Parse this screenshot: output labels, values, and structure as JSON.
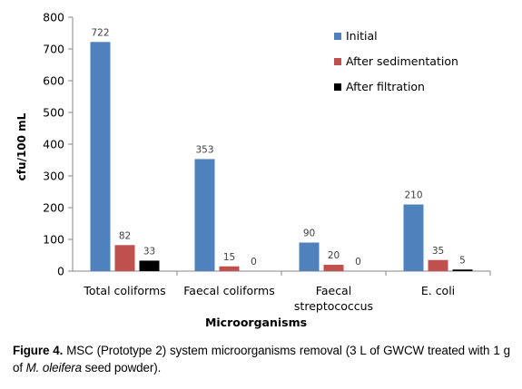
{
  "chart_data": {
    "type": "bar",
    "xlabel": "Microorganisms",
    "ylabel": "cfu/100 mL",
    "ylim": [
      0,
      800
    ],
    "yticks": [
      "0",
      "100",
      "200",
      "300",
      "400",
      "500",
      "600",
      "700",
      "800"
    ],
    "categories": [
      [
        "Total coliforms"
      ],
      [
        "Faecal coliforms"
      ],
      [
        "Faecal",
        "streptococcus"
      ],
      [
        "E. coli"
      ]
    ],
    "series": [
      {
        "name": "Initial",
        "color": "#4F81BD",
        "values": [
          722,
          353,
          90,
          210
        ]
      },
      {
        "name": "After sedimentation",
        "color": "#C0504D",
        "values": [
          82,
          15,
          20,
          35
        ]
      },
      {
        "name": "After filtration",
        "color": "#000000",
        "values": [
          33,
          0,
          0,
          5
        ]
      }
    ],
    "data_labels": [
      [
        "722",
        "353",
        "90",
        "210"
      ],
      [
        "82",
        "15",
        "20",
        "35"
      ],
      [
        "33",
        "0",
        "0",
        "5"
      ]
    ],
    "legend_position": "top-right",
    "grid": false
  },
  "caption": {
    "figure_label": "Figure 4.",
    "text_before_italic": " MSC (Prototype 2) system microorganisms removal (3 L of GWCW treated with 1 g of ",
    "italic": "M. oleifera",
    "text_after_italic": " seed powder)."
  }
}
